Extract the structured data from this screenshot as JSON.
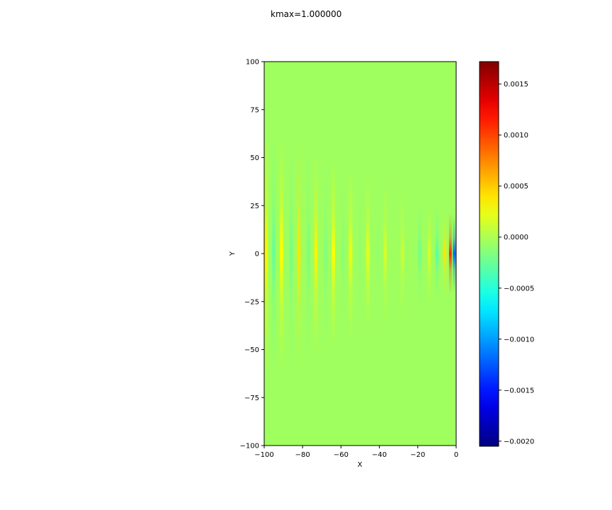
{
  "chart_data": {
    "type": "heatmap",
    "title": "kmax=1.000000",
    "xlabel": "X",
    "ylabel": "Y",
    "xlim": [
      -100,
      0
    ],
    "ylim": [
      -100,
      100
    ],
    "xticks": [
      "−100",
      "−80",
      "−60",
      "−40",
      "−20",
      "0"
    ],
    "yticks": [
      "100",
      "75",
      "50",
      "25",
      "0",
      "−25",
      "−50",
      "−75",
      "−100"
    ],
    "colormap": "jet",
    "colorbar": {
      "vmin": -0.00205,
      "vmax": 0.00172,
      "ticks": [
        "0.0015",
        "0.0010",
        "0.0005",
        "0.0000",
        "−0.0005",
        "−0.0010",
        "−0.0015",
        "−0.0020"
      ],
      "tick_values": [
        0.0015,
        0.001,
        0.0005,
        0,
        -0.0005,
        -0.001,
        -0.0015,
        -0.002
      ]
    },
    "background_value": 0.0,
    "wave_features": [
      {
        "x": -99,
        "peak": 0.00035
      },
      {
        "x": -95,
        "peak": -0.00025
      },
      {
        "x": -91,
        "peak": 0.0003
      },
      {
        "x": -86,
        "peak": -0.0002
      },
      {
        "x": -82,
        "peak": 0.0004
      },
      {
        "x": -77,
        "peak": -0.00018
      },
      {
        "x": -73,
        "peak": 0.00035
      },
      {
        "x": -68,
        "peak": -0.00015
      },
      {
        "x": -64,
        "peak": 0.0003
      },
      {
        "x": -59,
        "peak": -0.00012
      },
      {
        "x": -55,
        "peak": 0.00025
      },
      {
        "x": -50,
        "peak": -0.0001
      },
      {
        "x": -46,
        "peak": 0.0002
      },
      {
        "x": -41,
        "peak": -8e-05
      },
      {
        "x": -37,
        "peak": 0.00015
      },
      {
        "x": -28,
        "peak": 0.00012
      },
      {
        "x": -19,
        "peak": -0.0002
      },
      {
        "x": -14,
        "peak": 0.00015
      },
      {
        "x": -10,
        "peak": -0.0003
      },
      {
        "x": -6,
        "peak": 0.0004
      },
      {
        "x": -3,
        "peak": 0.0011
      },
      {
        "x": -1,
        "peak": -0.0012
      }
    ]
  }
}
